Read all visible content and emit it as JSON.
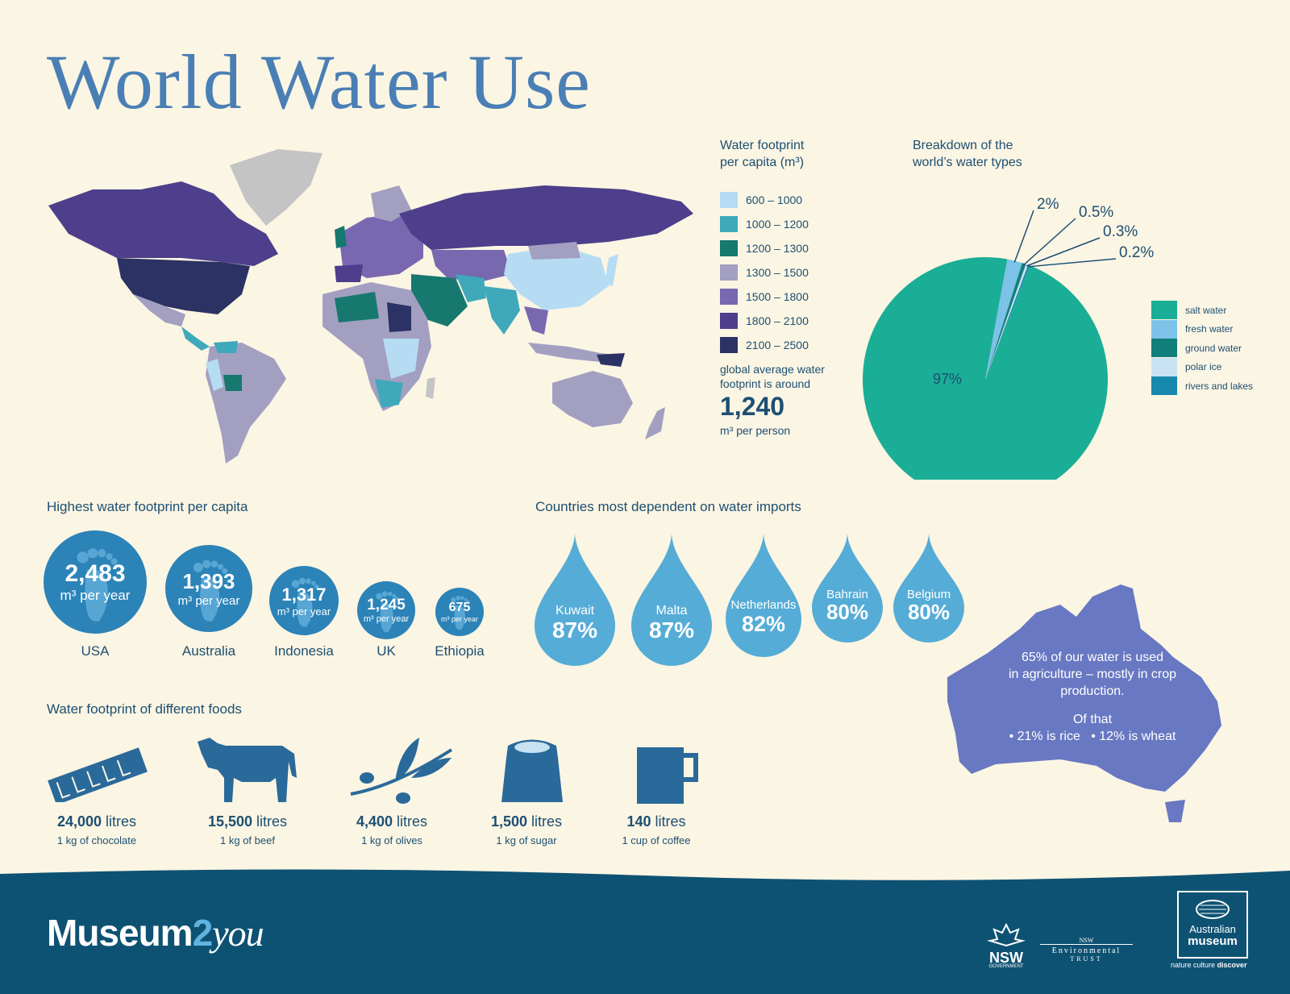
{
  "title": "World Water Use",
  "map_legend": {
    "title_line1": "Water footprint",
    "title_line2": "per capita (m³)",
    "items": [
      {
        "label": "600 – 1000",
        "color": "#b5dcf3"
      },
      {
        "label": "1000 – 1200",
        "color": "#3fa9bb"
      },
      {
        "label": "1200 – 1300",
        "color": "#17786f"
      },
      {
        "label": "1300 – 1500",
        "color": "#a29fc1"
      },
      {
        "label": "1500 – 1800",
        "color": "#7868b0"
      },
      {
        "label": "1800 – 2100",
        "color": "#4d3f8b"
      },
      {
        "label": "2100 – 2500",
        "color": "#2c3264"
      }
    ],
    "global_line1": "global average water",
    "global_line2": "footprint is around",
    "global_value": "1,240",
    "global_unit": "m³ per person"
  },
  "pie": {
    "title_line1": "Breakdown of the",
    "title_line2": "world’s water types",
    "slices": [
      {
        "name": "salt water",
        "value": 97,
        "label": "97%",
        "color": "#1aae96"
      },
      {
        "name": "fresh water",
        "value": 2,
        "label": "2%",
        "color": "#7dc2e8"
      },
      {
        "name": "ground water",
        "value": 0.5,
        "label": "0.5%",
        "color": "#117f79"
      },
      {
        "name": "polar ice",
        "value": 0.3,
        "label": "0.3%",
        "color": "#c8e2f3"
      },
      {
        "name": "rivers and lakes",
        "value": 0.2,
        "label": "0.2%",
        "color": "#1789ac"
      }
    ]
  },
  "highest": {
    "title": "Highest water footprint per capita",
    "unit": "m³ per year",
    "items": [
      {
        "country": "USA",
        "value": "2,483"
      },
      {
        "country": "Australia",
        "value": "1,393"
      },
      {
        "country": "Indonesia",
        "value": "1,317"
      },
      {
        "country": "UK",
        "value": "1,245"
      },
      {
        "country": "Ethiopia",
        "value": "675"
      }
    ]
  },
  "imports": {
    "title": "Countries most dependent on water imports",
    "items": [
      {
        "country": "Kuwait",
        "value": "87%"
      },
      {
        "country": "Malta",
        "value": "87%"
      },
      {
        "country": "Netherlands",
        "value": "82%"
      },
      {
        "country": "Bahrain",
        "value": "80%"
      },
      {
        "country": "Belgium",
        "value": "80%"
      }
    ]
  },
  "australia": {
    "line1": "65% of our water is used",
    "line2": "in agriculture – mostly in crop",
    "line3": "production.",
    "line4": "Of that",
    "line5": "• 21% is rice   • 12% is wheat",
    "color": "#6878c2"
  },
  "foods": {
    "title": "Water footprint of different foods",
    "unit": "litres",
    "items": [
      {
        "amount": "24,000",
        "label": "1 kg of chocolate"
      },
      {
        "amount": "15,500",
        "label": "1 kg of beef"
      },
      {
        "amount": "4,400",
        "label": "1 kg of olives"
      },
      {
        "amount": "1,500",
        "label": "1 kg of sugar"
      },
      {
        "amount": "140",
        "label": "1 cup of coffee"
      }
    ]
  },
  "footer": {
    "brand_main": "Museum",
    "brand_two": "2",
    "brand_you": "you",
    "nsw": "NSW",
    "nsw_sub": "GOVERNMENT",
    "trust_line1": "NSW",
    "trust_line2": "Environmental",
    "trust_line3": "TRUST",
    "am_line1": "Australian",
    "am_line2": "museum",
    "am_tag_a": "nature culture ",
    "am_tag_b": "discover"
  }
}
